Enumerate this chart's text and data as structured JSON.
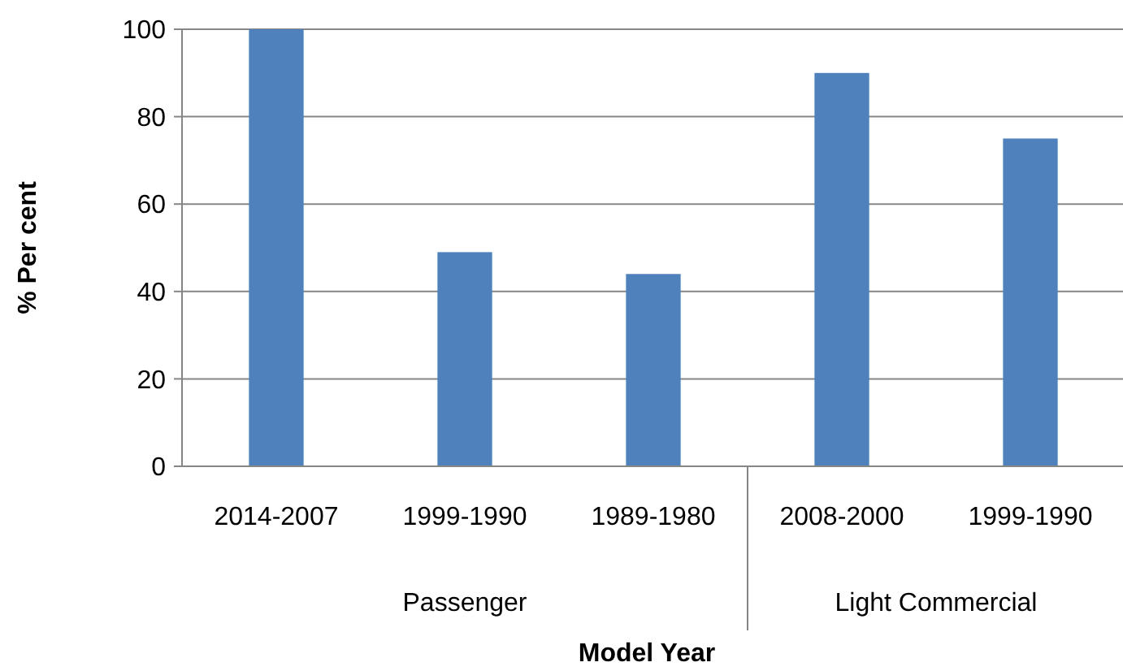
{
  "chart_data": {
    "type": "bar",
    "xlabel": "Model Year",
    "ylabel": "% Per cent",
    "categories": [
      "2014-2007",
      "1999-1990",
      "1989-1980",
      "2008-2000",
      "1999-1990"
    ],
    "values": [
      100,
      49,
      44,
      90,
      75
    ],
    "color": "#4f81bd",
    "ylim": [
      0,
      100
    ],
    "yticks": [
      0,
      20,
      40,
      60,
      80,
      100
    ],
    "grid": "y",
    "annotations": [
      "Passenger",
      "Light Commercial"
    ]
  }
}
